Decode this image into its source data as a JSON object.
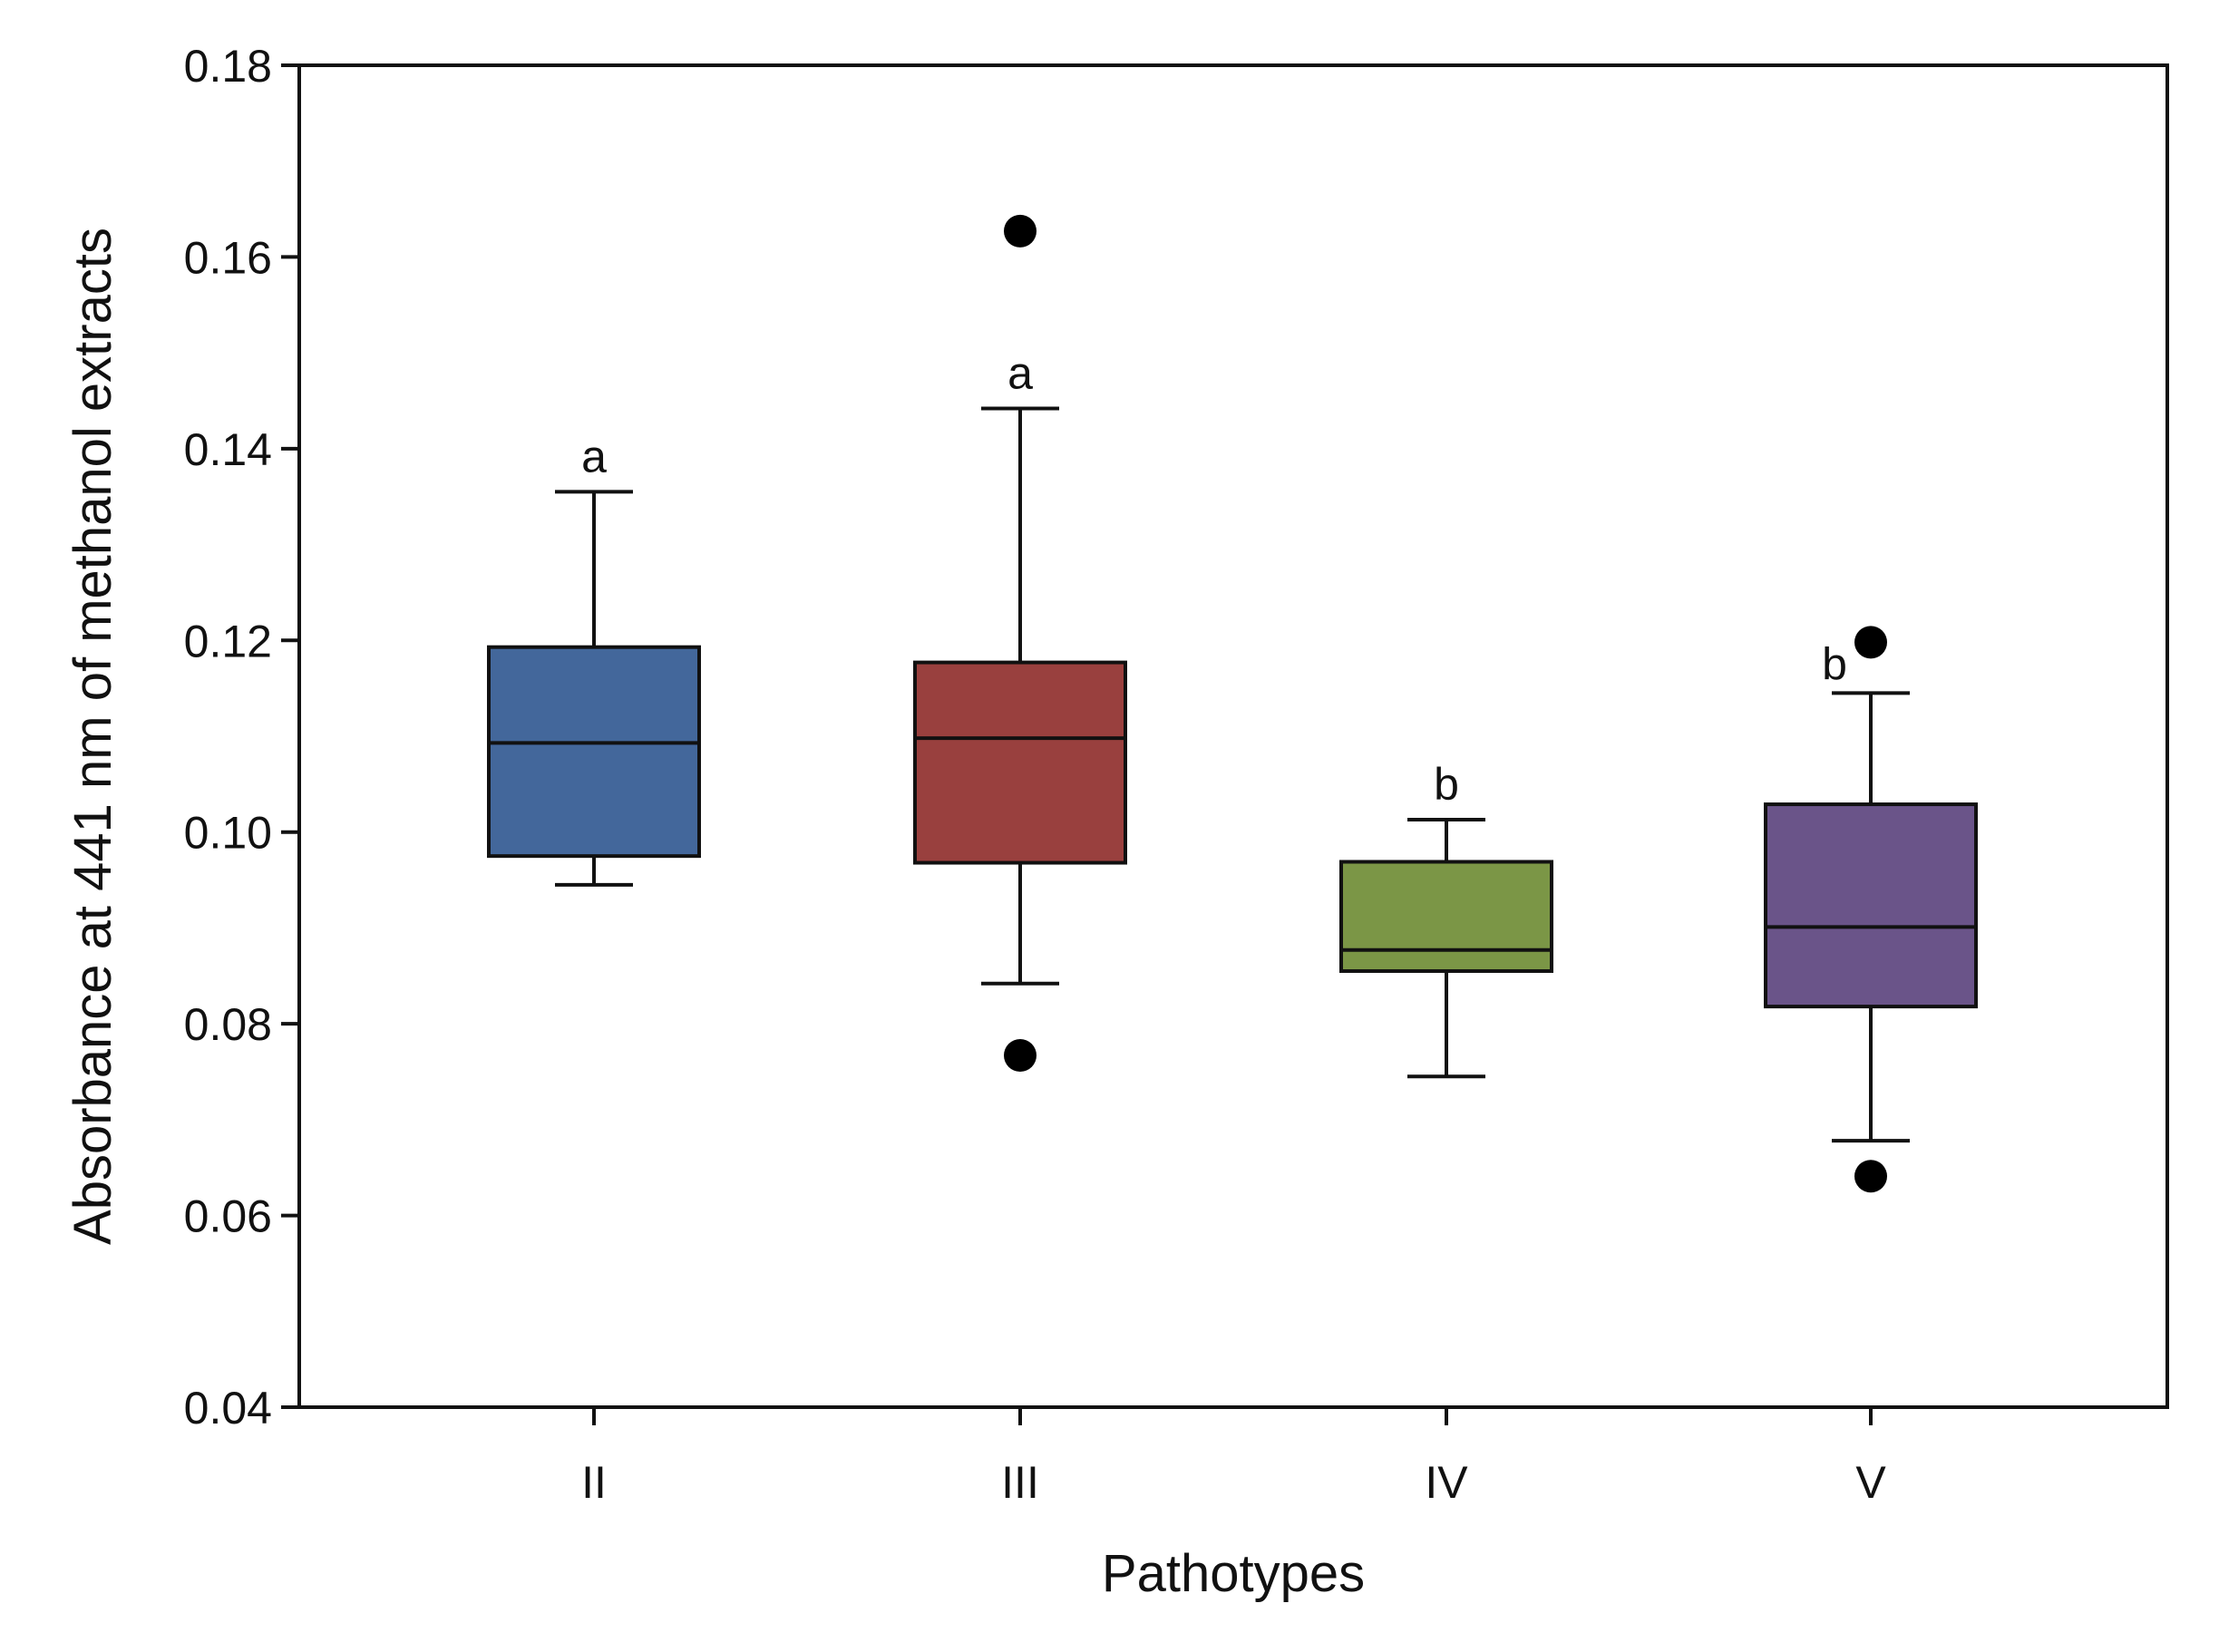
{
  "chart_data": {
    "type": "boxplot",
    "title": "",
    "xlabel": "Pathotypes",
    "ylabel": "Absorbance at 441 nm of methanol extracts",
    "ylim": [
      0.04,
      0.18
    ],
    "yticks": [
      "0.04",
      "0.06",
      "0.08",
      "0.10",
      "0.12",
      "0.14",
      "0.16",
      "0.18"
    ],
    "grid": false,
    "groups": [
      {
        "category": "II",
        "color": "#43679b",
        "whisker_low": 0.0945,
        "q1": 0.0975,
        "median": 0.1093,
        "q3": 0.1193,
        "whisker_high": 0.1355,
        "outliers": [],
        "letter": "a"
      },
      {
        "category": "III",
        "color": "#99403e",
        "whisker_low": 0.0842,
        "q1": 0.0968,
        "median": 0.1098,
        "q3": 0.1177,
        "whisker_high": 0.1442,
        "outliers": [
          0.1627,
          0.0767
        ],
        "letter": "a"
      },
      {
        "category": "IV",
        "color": "#7b9646",
        "whisker_low": 0.0745,
        "q1": 0.0855,
        "median": 0.0877,
        "q3": 0.0969,
        "whisker_high": 0.1013,
        "outliers": [],
        "letter": "b"
      },
      {
        "category": "V",
        "color": "#6a5489",
        "whisker_low": 0.0678,
        "q1": 0.0818,
        "median": 0.0901,
        "q3": 0.1029,
        "whisker_high": 0.1145,
        "outliers": [
          0.1198,
          0.0641
        ],
        "letter": "b"
      }
    ]
  }
}
